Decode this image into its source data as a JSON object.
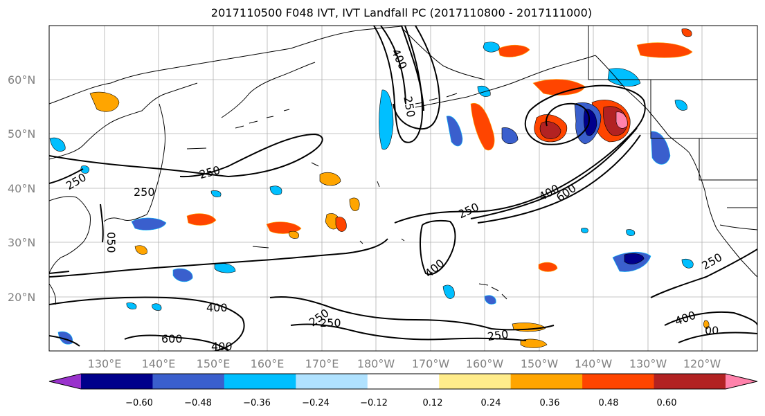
{
  "title": "2017110500 F048 IVT, IVT Landfall PC (2017110800 - 2017111000)",
  "lat_labels": [
    "60°N",
    "50°N",
    "40°N",
    "30°N",
    "20°N"
  ],
  "lon_labels": [
    "130°E",
    "140°E",
    "150°E",
    "160°E",
    "170°E",
    "180°W",
    "170°W",
    "160°W",
    "150°W",
    "140°W",
    "130°W",
    "120°W"
  ],
  "contour_labels": [
    "400",
    "250",
    "250",
    "250",
    "250",
    "050",
    "250",
    "400",
    "600",
    "400",
    "250",
    "250",
    "400",
    "600",
    "400",
    "250",
    "250",
    "400",
    "00"
  ],
  "colorbar": {
    "tick_labels": [
      "−0.60",
      "−0.48",
      "−0.36",
      "−0.24",
      "−0.12",
      "0.12",
      "0.24",
      "0.36",
      "0.48",
      "0.60"
    ],
    "colors": [
      "#9932cc",
      "#00008b",
      "#3a5fcd",
      "#00bfff",
      "#b0e2ff",
      "#ffffff",
      "#ffec8b",
      "#ffa500",
      "#ff4500",
      "#b22222",
      "#ff82ab"
    ]
  }
}
